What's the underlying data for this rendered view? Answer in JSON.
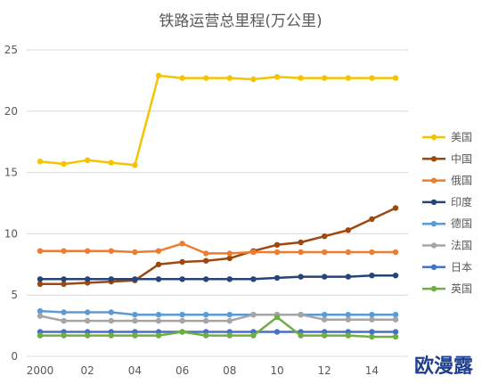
{
  "chart_data": {
    "type": "line",
    "title": "铁路运营总里程(万公里)",
    "xlabel": "",
    "ylabel": "",
    "x": [
      2000,
      2001,
      2002,
      2003,
      2004,
      2005,
      2006,
      2007,
      2008,
      2009,
      2010,
      2011,
      2012,
      2013,
      2014,
      2015
    ],
    "x_tick_values": [
      2000,
      2002,
      2004,
      2006,
      2008,
      2010,
      2012,
      2014
    ],
    "x_tick_labels": [
      "2000",
      "02",
      "04",
      "06",
      "08",
      "10",
      "12",
      "14"
    ],
    "ylim": [
      0,
      25
    ],
    "y_ticks": [
      "0",
      "5",
      "10",
      "15",
      "20",
      "25"
    ],
    "grid": "horizontal",
    "legend_position": "right",
    "series": [
      {
        "name": "美国",
        "color": "#F5C400",
        "values": [
          15.9,
          15.7,
          16.0,
          15.8,
          15.6,
          22.9,
          22.7,
          22.7,
          22.7,
          22.6,
          22.8,
          22.7,
          22.7,
          22.7,
          22.7,
          22.7
        ]
      },
      {
        "name": "中国",
        "color": "#9E480E",
        "values": [
          5.9,
          5.9,
          6.0,
          6.1,
          6.2,
          7.5,
          7.7,
          7.8,
          8.0,
          8.6,
          9.1,
          9.3,
          9.8,
          10.3,
          11.2,
          12.1
        ]
      },
      {
        "name": "俄国",
        "color": "#ED7D31",
        "values": [
          8.6,
          8.6,
          8.6,
          8.6,
          8.5,
          8.6,
          9.2,
          8.4,
          8.4,
          8.5,
          8.5,
          8.5,
          8.5,
          8.5,
          8.5,
          8.5
        ]
      },
      {
        "name": "印度",
        "color": "#264478",
        "values": [
          6.3,
          6.3,
          6.3,
          6.3,
          6.3,
          6.3,
          6.3,
          6.3,
          6.3,
          6.3,
          6.4,
          6.5,
          6.5,
          6.5,
          6.6,
          6.6
        ]
      },
      {
        "name": "德国",
        "color": "#5B9BD5",
        "values": [
          3.7,
          3.6,
          3.6,
          3.6,
          3.4,
          3.4,
          3.4,
          3.4,
          3.4,
          3.4,
          3.4,
          3.4,
          3.4,
          3.4,
          3.4,
          3.4
        ]
      },
      {
        "name": "法国",
        "color": "#A5A5A5",
        "values": [
          3.3,
          2.9,
          2.9,
          2.9,
          2.9,
          2.9,
          2.9,
          2.9,
          2.9,
          3.4,
          3.4,
          3.4,
          3.0,
          3.0,
          3.0,
          3.0
        ]
      },
      {
        "name": "日本",
        "color": "#4472C4",
        "values": [
          2.0,
          2.0,
          2.0,
          2.0,
          2.0,
          2.0,
          2.0,
          2.0,
          2.0,
          2.0,
          2.0,
          2.0,
          2.0,
          2.0,
          2.0,
          2.0
        ]
      },
      {
        "name": "英国",
        "color": "#70AD47",
        "values": [
          1.7,
          1.7,
          1.7,
          1.7,
          1.7,
          1.7,
          2.0,
          1.7,
          1.7,
          1.7,
          3.2,
          1.7,
          1.7,
          1.7,
          1.6,
          1.6
        ]
      }
    ]
  },
  "watermark": "欧漫露"
}
